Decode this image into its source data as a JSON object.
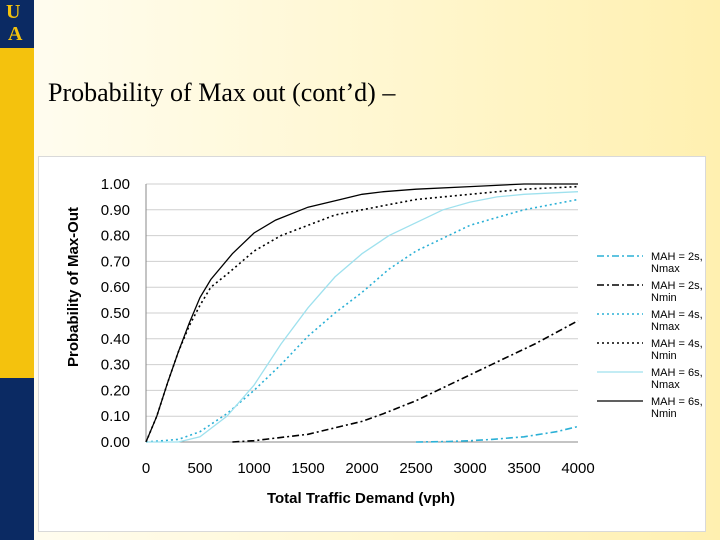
{
  "slide": {
    "logo_top": "U",
    "logo_bottom": "A",
    "title": "Probability of Max out (cont’d) –"
  },
  "colors": {
    "sidebar_gold": "#f4c20d",
    "sidebar_navy": "#0b2a63",
    "cyan": "#2bb0d6",
    "light_cyan": "#9fe1ee",
    "black": "#000000"
  },
  "chart_data": {
    "type": "line",
    "title": "",
    "xlabel": "Total Traffic Demand (vph)",
    "ylabel": "Probability of Max-Out",
    "xlim": [
      0,
      4000
    ],
    "ylim": [
      0,
      1
    ],
    "x_ticks": [
      "0",
      "500",
      "1000",
      "1500",
      "2000",
      "2500",
      "3000",
      "3500",
      "4000"
    ],
    "y_ticks": [
      "0.00",
      "0.10",
      "0.20",
      "0.30",
      "0.40",
      "0.50",
      "0.60",
      "0.70",
      "0.80",
      "0.90",
      "1.00"
    ],
    "grid": "horizontal",
    "legend_position": "right",
    "series": [
      {
        "name": "MAH = 2s, Nmax",
        "line1": "MAH = 2s,",
        "line2": "Nmax",
        "color": "#2bb0d6",
        "dash": "dashdot",
        "x": [
          2500,
          2800,
          3000,
          3200,
          3500,
          3800,
          4000
        ],
        "y": [
          0.0,
          0.002,
          0.005,
          0.01,
          0.02,
          0.04,
          0.06
        ]
      },
      {
        "name": "MAH = 2s, Nmin",
        "line1": "MAH = 2s,",
        "line2": "Nmin",
        "color": "#000000",
        "dash": "dashdot",
        "x": [
          800,
          1000,
          1200,
          1500,
          1800,
          2000,
          2200,
          2500,
          2800,
          3000,
          3300,
          3600,
          4000
        ],
        "y": [
          0.0,
          0.005,
          0.015,
          0.03,
          0.06,
          0.08,
          0.11,
          0.16,
          0.22,
          0.26,
          0.32,
          0.38,
          0.47
        ]
      },
      {
        "name": "MAH = 4s, Nmax",
        "line1": "MAH = 4s,",
        "line2": "Nmax",
        "color": "#2bb0d6",
        "dash": "dotted",
        "x": [
          0,
          300,
          500,
          750,
          1000,
          1250,
          1500,
          1750,
          2000,
          2250,
          2500,
          2750,
          3000,
          3250,
          3500,
          3750,
          4000
        ],
        "y": [
          0.0,
          0.01,
          0.04,
          0.11,
          0.2,
          0.3,
          0.41,
          0.5,
          0.58,
          0.67,
          0.74,
          0.79,
          0.84,
          0.87,
          0.9,
          0.92,
          0.94
        ]
      },
      {
        "name": "MAH = 4s, Nmin",
        "line1": "MAH = 4s,",
        "line2": "Nmin",
        "color": "#000000",
        "dash": "dotted",
        "x": [
          0,
          100,
          200,
          300,
          400,
          500,
          600,
          750,
          1000,
          1250,
          1500,
          1750,
          2000,
          2250,
          2500,
          2750,
          3000,
          3500,
          4000
        ],
        "y": [
          0.0,
          0.1,
          0.23,
          0.35,
          0.45,
          0.53,
          0.6,
          0.65,
          0.74,
          0.8,
          0.84,
          0.88,
          0.9,
          0.92,
          0.94,
          0.95,
          0.96,
          0.98,
          0.99
        ]
      },
      {
        "name": "MAH = 6s, Nmax",
        "line1": "MAH = 6s,",
        "line2": "Nmax",
        "color": "#9fe1ee",
        "dash": "solid",
        "x": [
          0,
          300,
          500,
          750,
          1000,
          1250,
          1500,
          1750,
          2000,
          2250,
          2500,
          2750,
          3000,
          3250,
          3500,
          4000
        ],
        "y": [
          0.0,
          0.0,
          0.02,
          0.1,
          0.22,
          0.38,
          0.52,
          0.64,
          0.73,
          0.8,
          0.85,
          0.9,
          0.93,
          0.95,
          0.96,
          0.97
        ]
      },
      {
        "name": "MAH = 6s, Nmin",
        "line1": "MAH = 6s,",
        "line2": "Nmin",
        "color": "#000000",
        "dash": "solid",
        "x": [
          0,
          100,
          200,
          300,
          400,
          500,
          600,
          800,
          1000,
          1200,
          1500,
          1800,
          2000,
          2200,
          2500,
          3000,
          3500,
          4000
        ],
        "y": [
          0.0,
          0.1,
          0.23,
          0.35,
          0.46,
          0.56,
          0.63,
          0.73,
          0.81,
          0.86,
          0.91,
          0.94,
          0.96,
          0.97,
          0.98,
          0.99,
          1.0,
          1.0
        ]
      }
    ]
  }
}
